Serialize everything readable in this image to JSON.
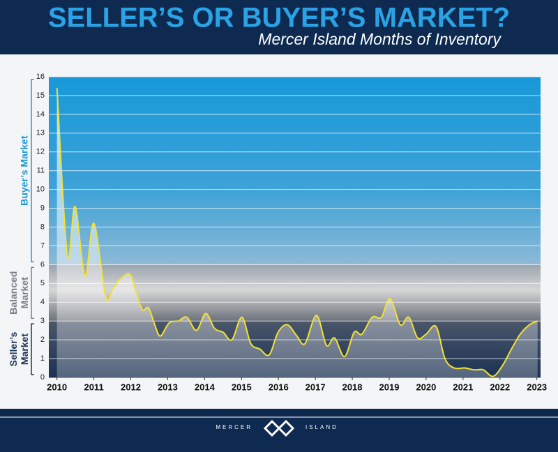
{
  "header": {
    "title": "SELLER’S OR BUYER’S MARKET?",
    "subtitle": "Mercer Island Months of Inventory"
  },
  "chart_data": {
    "type": "line",
    "x": [
      2010.0,
      2010.28,
      2010.49,
      2010.76,
      2011.0,
      2011.32,
      2011.51,
      2011.7,
      2011.97,
      2012.14,
      2012.31,
      2012.48,
      2012.65,
      2012.8,
      2013.04,
      2013.29,
      2013.52,
      2013.78,
      2014.03,
      2014.27,
      2014.5,
      2014.74,
      2015.01,
      2015.25,
      2015.5,
      2015.75,
      2015.99,
      2016.24,
      2016.5,
      2016.72,
      2017.03,
      2017.3,
      2017.52,
      2017.79,
      2018.05,
      2018.26,
      2018.54,
      2018.79,
      2019.02,
      2019.3,
      2019.53,
      2019.77,
      2020.0,
      2020.27,
      2020.51,
      2020.76,
      2021.04,
      2021.31,
      2021.55,
      2021.81,
      2022.06,
      2022.31,
      2022.55,
      2022.8,
      2023.02
    ],
    "values": [
      15.4,
      6.5,
      9.1,
      5.4,
      8.2,
      4.3,
      4.7,
      5.2,
      5.5,
      4.6,
      3.6,
      3.7,
      2.8,
      2.2,
      2.9,
      3.0,
      3.2,
      2.5,
      3.4,
      2.6,
      2.4,
      2.0,
      3.2,
      1.8,
      1.5,
      1.2,
      2.4,
      2.8,
      2.2,
      1.8,
      3.3,
      1.7,
      2.1,
      1.1,
      2.4,
      2.3,
      3.2,
      3.2,
      4.2,
      2.8,
      3.2,
      2.1,
      2.3,
      2.7,
      1.0,
      0.5,
      0.5,
      0.4,
      0.4,
      0.05,
      0.6,
      1.5,
      2.3,
      2.8,
      3.0
    ],
    "color": "#f2e233",
    "xlim": [
      2009.78,
      2023.1
    ],
    "xticks": [
      2010,
      2011,
      2012,
      2013,
      2014,
      2015,
      2016,
      2017,
      2018,
      2019,
      2020,
      2021,
      2022,
      2023
    ],
    "ylim": [
      0,
      16
    ],
    "yticks": [
      0,
      1,
      2,
      3,
      4,
      5,
      6,
      7,
      8,
      9,
      10,
      11,
      12,
      13,
      14,
      15,
      16
    ],
    "grid": true,
    "zones": [
      {
        "label": "Seller’s Market",
        "from": 0,
        "to": 3,
        "color": "#1d3557"
      },
      {
        "label": "Balanced Market",
        "from": 3,
        "to": 6,
        "color": "#7a7f88"
      },
      {
        "label": "Buyer’s Market",
        "from": 6,
        "to": 16,
        "color": "#1b9ad8"
      }
    ]
  },
  "footer": {
    "left": "MERCER",
    "right": "ISLAND"
  }
}
